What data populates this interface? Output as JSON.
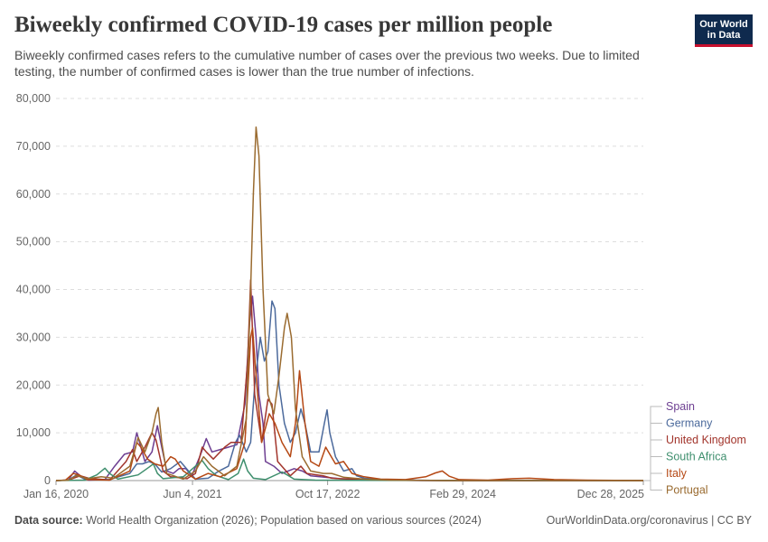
{
  "header": {
    "title": "Biweekly confirmed COVID-19 cases per million people",
    "subtitle": "Biweekly confirmed cases refers to the cumulative number of cases over the previous two weeks. Due to limited testing, the number of confirmed cases is lower than the true number of infections.",
    "logo_line1": "Our World",
    "logo_line2": "in Data"
  },
  "footer": {
    "source_label": "Data source:",
    "source_text": "World Health Organization (2026); Population based on various sources (2024)",
    "credit": "OurWorldinData.org/coronavirus | CC BY"
  },
  "chart_data": {
    "type": "line",
    "title": "Biweekly confirmed COVID-19 cases per million people",
    "ylim": [
      0,
      80000
    ],
    "yticks": [
      0,
      10000,
      20000,
      30000,
      40000,
      50000,
      60000,
      70000,
      80000
    ],
    "ytick_labels": [
      "0",
      "10,000",
      "20,000",
      "30,000",
      "40,000",
      "50,000",
      "60,000",
      "70,000",
      "80,000"
    ],
    "xlim": [
      "2020-01-16",
      "2025-12-28"
    ],
    "xtick_labels": [
      "Jan 16, 2020",
      "Jun 4, 2021",
      "Oct 17, 2022",
      "Feb 29, 2024",
      "Dec 28, 2025"
    ],
    "xtick_dates": [
      "2020-01-16",
      "2021-06-04",
      "2022-10-17",
      "2024-02-29",
      "2025-12-28"
    ],
    "grid": true,
    "legend_position": "right",
    "series": [
      {
        "name": "Spain",
        "color": "#6d3e91",
        "points": [
          [
            "2020-01-16",
            0
          ],
          [
            "2020-03-01",
            100
          ],
          [
            "2020-03-25",
            2000
          ],
          [
            "2020-04-15",
            1000
          ],
          [
            "2020-05-15",
            100
          ],
          [
            "2020-07-15",
            200
          ],
          [
            "2020-08-20",
            3000
          ],
          [
            "2020-09-25",
            5500
          ],
          [
            "2020-10-25",
            6000
          ],
          [
            "2020-11-10",
            10000
          ],
          [
            "2020-11-25",
            7000
          ],
          [
            "2020-12-10",
            4000
          ],
          [
            "2021-01-05",
            6000
          ],
          [
            "2021-01-25",
            11500
          ],
          [
            "2021-02-10",
            7000
          ],
          [
            "2021-03-01",
            2000
          ],
          [
            "2021-03-25",
            1500
          ],
          [
            "2021-04-15",
            2500
          ],
          [
            "2021-05-10",
            2500
          ],
          [
            "2021-06-01",
            1000
          ],
          [
            "2021-07-01",
            5000
          ],
          [
            "2021-07-25",
            8800
          ],
          [
            "2021-08-15",
            6000
          ],
          [
            "2021-09-15",
            6500
          ],
          [
            "2021-10-15",
            7000
          ],
          [
            "2021-11-15",
            7500
          ],
          [
            "2021-12-15",
            16000
          ],
          [
            "2022-01-01",
            33000
          ],
          [
            "2022-01-12",
            38600
          ],
          [
            "2022-01-25",
            30000
          ],
          [
            "2022-02-05",
            18000
          ],
          [
            "2022-02-20",
            12000
          ],
          [
            "2022-03-01",
            4000
          ],
          [
            "2022-04-01",
            3000
          ],
          [
            "2022-05-01",
            1500
          ],
          [
            "2022-06-15",
            2500
          ],
          [
            "2022-07-15",
            2000
          ],
          [
            "2022-08-15",
            1000
          ],
          [
            "2022-12-01",
            400
          ],
          [
            "2023-02-01",
            300
          ],
          [
            "2023-06-01",
            100
          ],
          [
            "2023-10-01",
            0
          ],
          [
            "2025-12-28",
            0
          ]
        ]
      },
      {
        "name": "Germany",
        "color": "#4c6a9c",
        "points": [
          [
            "2020-01-16",
            0
          ],
          [
            "2020-03-01",
            100
          ],
          [
            "2020-04-01",
            1200
          ],
          [
            "2020-05-01",
            300
          ],
          [
            "2020-08-01",
            200
          ],
          [
            "2020-10-15",
            1500
          ],
          [
            "2020-11-10",
            3500
          ],
          [
            "2020-12-01",
            3500
          ],
          [
            "2020-12-25",
            4000
          ],
          [
            "2021-01-15",
            3500
          ],
          [
            "2021-02-10",
            1800
          ],
          [
            "2021-03-15",
            2500
          ],
          [
            "2021-04-20",
            4000
          ],
          [
            "2021-05-20",
            2000
          ],
          [
            "2021-06-15",
            300
          ],
          [
            "2021-08-01",
            500
          ],
          [
            "2021-09-10",
            2000
          ],
          [
            "2021-10-15",
            3000
          ],
          [
            "2021-11-10",
            8000
          ],
          [
            "2021-11-25",
            9500
          ],
          [
            "2021-12-20",
            6000
          ],
          [
            "2022-01-05",
            8000
          ],
          [
            "2022-01-20",
            20000
          ],
          [
            "2022-02-10",
            30000
          ],
          [
            "2022-02-25",
            25000
          ],
          [
            "2022-03-10",
            27000
          ],
          [
            "2022-03-25",
            37600
          ],
          [
            "2022-04-05",
            36000
          ],
          [
            "2022-04-20",
            20000
          ],
          [
            "2022-05-10",
            12000
          ],
          [
            "2022-06-01",
            8000
          ],
          [
            "2022-06-20",
            10000
          ],
          [
            "2022-07-10",
            15000
          ],
          [
            "2022-07-25",
            12000
          ],
          [
            "2022-08-15",
            6000
          ],
          [
            "2022-09-15",
            6000
          ],
          [
            "2022-10-05",
            12000
          ],
          [
            "2022-10-15",
            14800
          ],
          [
            "2022-10-25",
            10000
          ],
          [
            "2022-11-15",
            5000
          ],
          [
            "2022-12-15",
            2000
          ],
          [
            "2023-01-15",
            2500
          ],
          [
            "2023-02-01",
            1000
          ],
          [
            "2023-03-01",
            500
          ],
          [
            "2023-05-01",
            200
          ],
          [
            "2023-09-01",
            100
          ],
          [
            "2024-01-01",
            0
          ],
          [
            "2025-12-28",
            0
          ]
        ]
      },
      {
        "name": "United Kingdom",
        "color": "#a2352c",
        "points": [
          [
            "2020-01-16",
            0
          ],
          [
            "2020-03-01",
            100
          ],
          [
            "2020-04-15",
            1000
          ],
          [
            "2020-05-15",
            500
          ],
          [
            "2020-08-01",
            100
          ],
          [
            "2020-10-01",
            4000
          ],
          [
            "2020-10-25",
            6500
          ],
          [
            "2020-11-10",
            4000
          ],
          [
            "2020-12-10",
            7000
          ],
          [
            "2021-01-05",
            10000
          ],
          [
            "2021-01-20",
            8500
          ],
          [
            "2021-02-15",
            2000
          ],
          [
            "2021-03-15",
            800
          ],
          [
            "2021-05-15",
            400
          ],
          [
            "2021-06-15",
            1500
          ],
          [
            "2021-07-10",
            7000
          ],
          [
            "2021-07-25",
            6000
          ],
          [
            "2021-08-20",
            4500
          ],
          [
            "2021-10-01",
            7000
          ],
          [
            "2021-10-25",
            8000
          ],
          [
            "2021-12-01",
            8000
          ],
          [
            "2021-12-25",
            25000
          ],
          [
            "2022-01-05",
            42000
          ],
          [
            "2022-01-20",
            18000
          ],
          [
            "2022-02-15",
            8000
          ],
          [
            "2022-03-10",
            17000
          ],
          [
            "2022-03-25",
            16000
          ],
          [
            "2022-04-15",
            4000
          ],
          [
            "2022-06-01",
            1000
          ],
          [
            "2022-07-10",
            3000
          ],
          [
            "2022-08-01",
            1500
          ],
          [
            "2022-10-01",
            1000
          ],
          [
            "2022-11-01",
            500
          ],
          [
            "2023-01-01",
            300
          ],
          [
            "2023-06-01",
            100
          ],
          [
            "2024-01-01",
            0
          ],
          [
            "2025-12-28",
            0
          ]
        ]
      },
      {
        "name": "South Africa",
        "color": "#3f8f6e",
        "points": [
          [
            "2020-01-16",
            0
          ],
          [
            "2020-05-01",
            100
          ],
          [
            "2020-06-15",
            1200
          ],
          [
            "2020-07-15",
            2600
          ],
          [
            "2020-08-01",
            1500
          ],
          [
            "2020-09-01",
            300
          ],
          [
            "2020-11-15",
            1200
          ],
          [
            "2020-12-25",
            2800
          ],
          [
            "2021-01-10",
            3500
          ],
          [
            "2021-01-25",
            1500
          ],
          [
            "2021-02-15",
            400
          ],
          [
            "2021-05-01",
            800
          ],
          [
            "2021-06-15",
            3000
          ],
          [
            "2021-07-10",
            4200
          ],
          [
            "2021-08-01",
            2500
          ],
          [
            "2021-09-01",
            1000
          ],
          [
            "2021-10-15",
            200
          ],
          [
            "2021-11-20",
            1500
          ],
          [
            "2021-12-10",
            4500
          ],
          [
            "2021-12-25",
            2000
          ],
          [
            "2022-01-15",
            500
          ],
          [
            "2022-03-01",
            200
          ],
          [
            "2022-05-01",
            1800
          ],
          [
            "2022-05-20",
            1200
          ],
          [
            "2022-06-15",
            300
          ],
          [
            "2022-09-01",
            100
          ],
          [
            "2023-01-01",
            50
          ],
          [
            "2025-12-28",
            0
          ]
        ]
      },
      {
        "name": "Italy",
        "color": "#b54814",
        "points": [
          [
            "2020-01-16",
            0
          ],
          [
            "2020-02-20",
            100
          ],
          [
            "2020-03-20",
            1500
          ],
          [
            "2020-04-10",
            1200
          ],
          [
            "2020-05-10",
            200
          ],
          [
            "2020-08-01",
            100
          ],
          [
            "2020-10-15",
            2000
          ],
          [
            "2020-11-10",
            8000
          ],
          [
            "2020-11-25",
            7000
          ],
          [
            "2020-12-20",
            4500
          ],
          [
            "2021-01-15",
            3500
          ],
          [
            "2021-02-15",
            3000
          ],
          [
            "2021-03-15",
            5000
          ],
          [
            "2021-04-01",
            4500
          ],
          [
            "2021-05-01",
            2000
          ],
          [
            "2021-06-15",
            300
          ],
          [
            "2021-08-01",
            1500
          ],
          [
            "2021-09-15",
            800
          ],
          [
            "2021-11-15",
            2500
          ],
          [
            "2021-12-15",
            8000
          ],
          [
            "2022-01-05",
            30000
          ],
          [
            "2022-01-12",
            32000
          ],
          [
            "2022-01-25",
            22000
          ],
          [
            "2022-02-15",
            8000
          ],
          [
            "2022-03-15",
            14000
          ],
          [
            "2022-04-05",
            12000
          ],
          [
            "2022-05-01",
            8000
          ],
          [
            "2022-06-01",
            5000
          ],
          [
            "2022-06-20",
            12000
          ],
          [
            "2022-07-05",
            23000
          ],
          [
            "2022-07-25",
            12000
          ],
          [
            "2022-08-15",
            4000
          ],
          [
            "2022-09-15",
            3000
          ],
          [
            "2022-10-10",
            7000
          ],
          [
            "2022-10-20",
            6000
          ],
          [
            "2022-11-15",
            3500
          ],
          [
            "2022-12-15",
            4000
          ],
          [
            "2023-01-15",
            1500
          ],
          [
            "2023-03-01",
            800
          ],
          [
            "2023-05-01",
            300
          ],
          [
            "2023-08-01",
            200
          ],
          [
            "2023-10-15",
            800
          ],
          [
            "2023-11-20",
            1600
          ],
          [
            "2023-12-15",
            2000
          ],
          [
            "2024-01-10",
            900
          ],
          [
            "2024-02-15",
            200
          ],
          [
            "2024-06-01",
            100
          ],
          [
            "2024-09-01",
            400
          ],
          [
            "2024-11-01",
            500
          ],
          [
            "2025-02-01",
            200
          ],
          [
            "2025-06-01",
            100
          ],
          [
            "2025-12-28",
            0
          ]
        ]
      },
      {
        "name": "Portugal",
        "color": "#9a6b30",
        "points": [
          [
            "2020-01-16",
            0
          ],
          [
            "2020-03-01",
            100
          ],
          [
            "2020-04-01",
            1000
          ],
          [
            "2020-05-15",
            400
          ],
          [
            "2020-07-01",
            800
          ],
          [
            "2020-08-15",
            500
          ],
          [
            "2020-10-15",
            3000
          ],
          [
            "2020-11-15",
            9000
          ],
          [
            "2020-12-10",
            6000
          ],
          [
            "2021-01-05",
            10000
          ],
          [
            "2021-01-20",
            14000
          ],
          [
            "2021-01-28",
            15300
          ],
          [
            "2021-02-10",
            8000
          ],
          [
            "2021-03-01",
            1500
          ],
          [
            "2021-05-01",
            300
          ],
          [
            "2021-06-15",
            2000
          ],
          [
            "2021-07-15",
            5000
          ],
          [
            "2021-08-15",
            3000
          ],
          [
            "2021-10-01",
            1000
          ],
          [
            "2021-11-15",
            3000
          ],
          [
            "2021-12-20",
            13000
          ],
          [
            "2022-01-05",
            40000
          ],
          [
            "2022-01-15",
            60000
          ],
          [
            "2022-01-25",
            74000
          ],
          [
            "2022-02-05",
            68000
          ],
          [
            "2022-02-20",
            40000
          ],
          [
            "2022-03-10",
            18000
          ],
          [
            "2022-04-01",
            14000
          ],
          [
            "2022-04-20",
            22000
          ],
          [
            "2022-05-10",
            32000
          ],
          [
            "2022-05-20",
            35000
          ],
          [
            "2022-06-05",
            30000
          ],
          [
            "2022-06-20",
            15000
          ],
          [
            "2022-07-15",
            5000
          ],
          [
            "2022-08-15",
            2000
          ],
          [
            "2022-10-01",
            1500
          ],
          [
            "2022-11-01",
            1500
          ],
          [
            "2022-12-15",
            700
          ],
          [
            "2023-03-01",
            300
          ],
          [
            "2023-06-01",
            100
          ],
          [
            "2024-01-01",
            0
          ],
          [
            "2025-12-28",
            0
          ]
        ]
      }
    ]
  }
}
